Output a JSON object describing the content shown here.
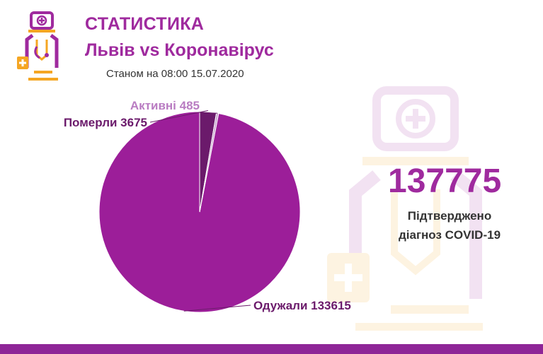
{
  "header": {
    "title": "СТАТИСТИКА",
    "subtitle": "Львів vs Коронавірус",
    "date_line": "Станом на 08:00 15.07.2020",
    "logo_icon": "doctor-icon"
  },
  "stats": {
    "total": "137775",
    "caption_line1": "Підтверджено",
    "caption_line2": "діагноз COVID-19"
  },
  "colors": {
    "brand": "#9f2a9e",
    "recovered": "#9c1e99",
    "died": "#6b1a6b",
    "active": "#c9a3cf",
    "bar": "#8e2597",
    "orange": "#f5a623"
  },
  "chart_data": {
    "type": "pie",
    "title": "",
    "slices": [
      {
        "label": "Одужали 133615",
        "value": 133615,
        "color": "#9c1e99"
      },
      {
        "label": "Померли 3675",
        "value": 3675,
        "color": "#6b1a6b"
      },
      {
        "label": "Активні 485",
        "value": 485,
        "color": "#c9a3cf"
      }
    ]
  }
}
